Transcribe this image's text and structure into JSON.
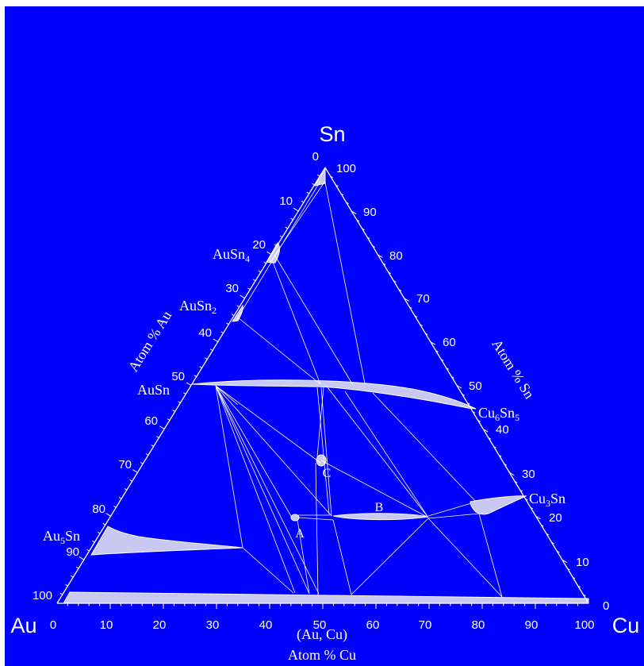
{
  "diagram": {
    "type": "ternary-phase-diagram",
    "colors": {
      "background": "#0000ff",
      "lines": "#ffffff",
      "phase_fill": "#c8c8f0"
    },
    "corners": {
      "top": "Sn",
      "left": "Au",
      "right": "Cu"
    },
    "axis_titles": {
      "left": "Atom % Au",
      "right": "Atom % Sn",
      "bottom": "Atom % Cu"
    },
    "bottom_phase_label": "(Au, Cu)",
    "ticks": {
      "bottom": [
        "0",
        "10",
        "20",
        "30",
        "40",
        "50",
        "60",
        "70",
        "80",
        "90",
        "100"
      ],
      "right": [
        "0",
        "10",
        "20",
        "30",
        "40",
        "50",
        "60",
        "70",
        "80",
        "90",
        "100"
      ],
      "left": [
        "0",
        "10",
        "20",
        "30",
        "40",
        "50",
        "60",
        "70",
        "80",
        "90",
        "100"
      ]
    },
    "phase_labels": {
      "ausn4": {
        "base": "AuSn",
        "sub": "4"
      },
      "ausn2": {
        "base": "AuSn",
        "sub": "2"
      },
      "ausn": {
        "base": "AuSn",
        "sub": ""
      },
      "au5sn": {
        "base": "Au",
        "sub": "5",
        "tail": "Sn"
      },
      "cu6sn5": {
        "base": "Cu",
        "sub": "6",
        "mid": "Sn",
        "sub2": "5"
      },
      "cu3sn": {
        "base": "Cu",
        "sub": "3",
        "tail": "Sn"
      }
    },
    "point_labels": {
      "A": "A",
      "B": "B",
      "C": "C"
    }
  }
}
